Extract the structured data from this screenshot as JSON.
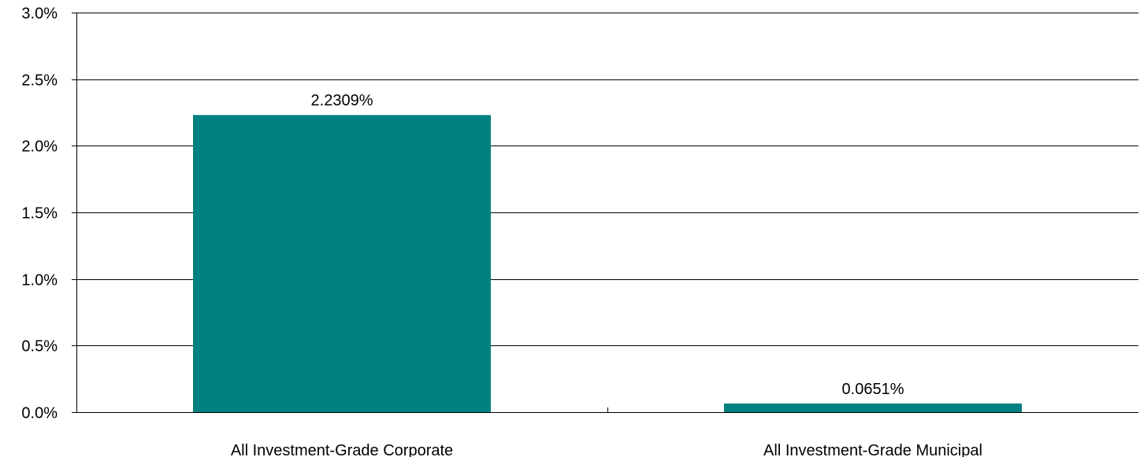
{
  "chart_data": {
    "type": "bar",
    "title": "",
    "xlabel": "",
    "ylabel": "",
    "categories": [
      "All Investment-Grade Corporate",
      "All Investment-Grade Municipal"
    ],
    "values": [
      2.2309,
      0.0651
    ],
    "data_labels": [
      "2.2309%",
      "0.0651%"
    ],
    "ylim": [
      0,
      3.0
    ],
    "y_ticks": [
      0,
      0.5,
      1.0,
      1.5,
      2.0,
      2.5,
      3.0
    ],
    "y_tick_labels": [
      "0.0%",
      "0.5%",
      "1.0%",
      "1.5%",
      "2.0%",
      "2.5%",
      "3.0%"
    ],
    "grid": true,
    "legend": "none",
    "colors": {
      "bar": "#008080",
      "gridline": "#000000",
      "axis": "#000000",
      "text": "#000000"
    }
  }
}
